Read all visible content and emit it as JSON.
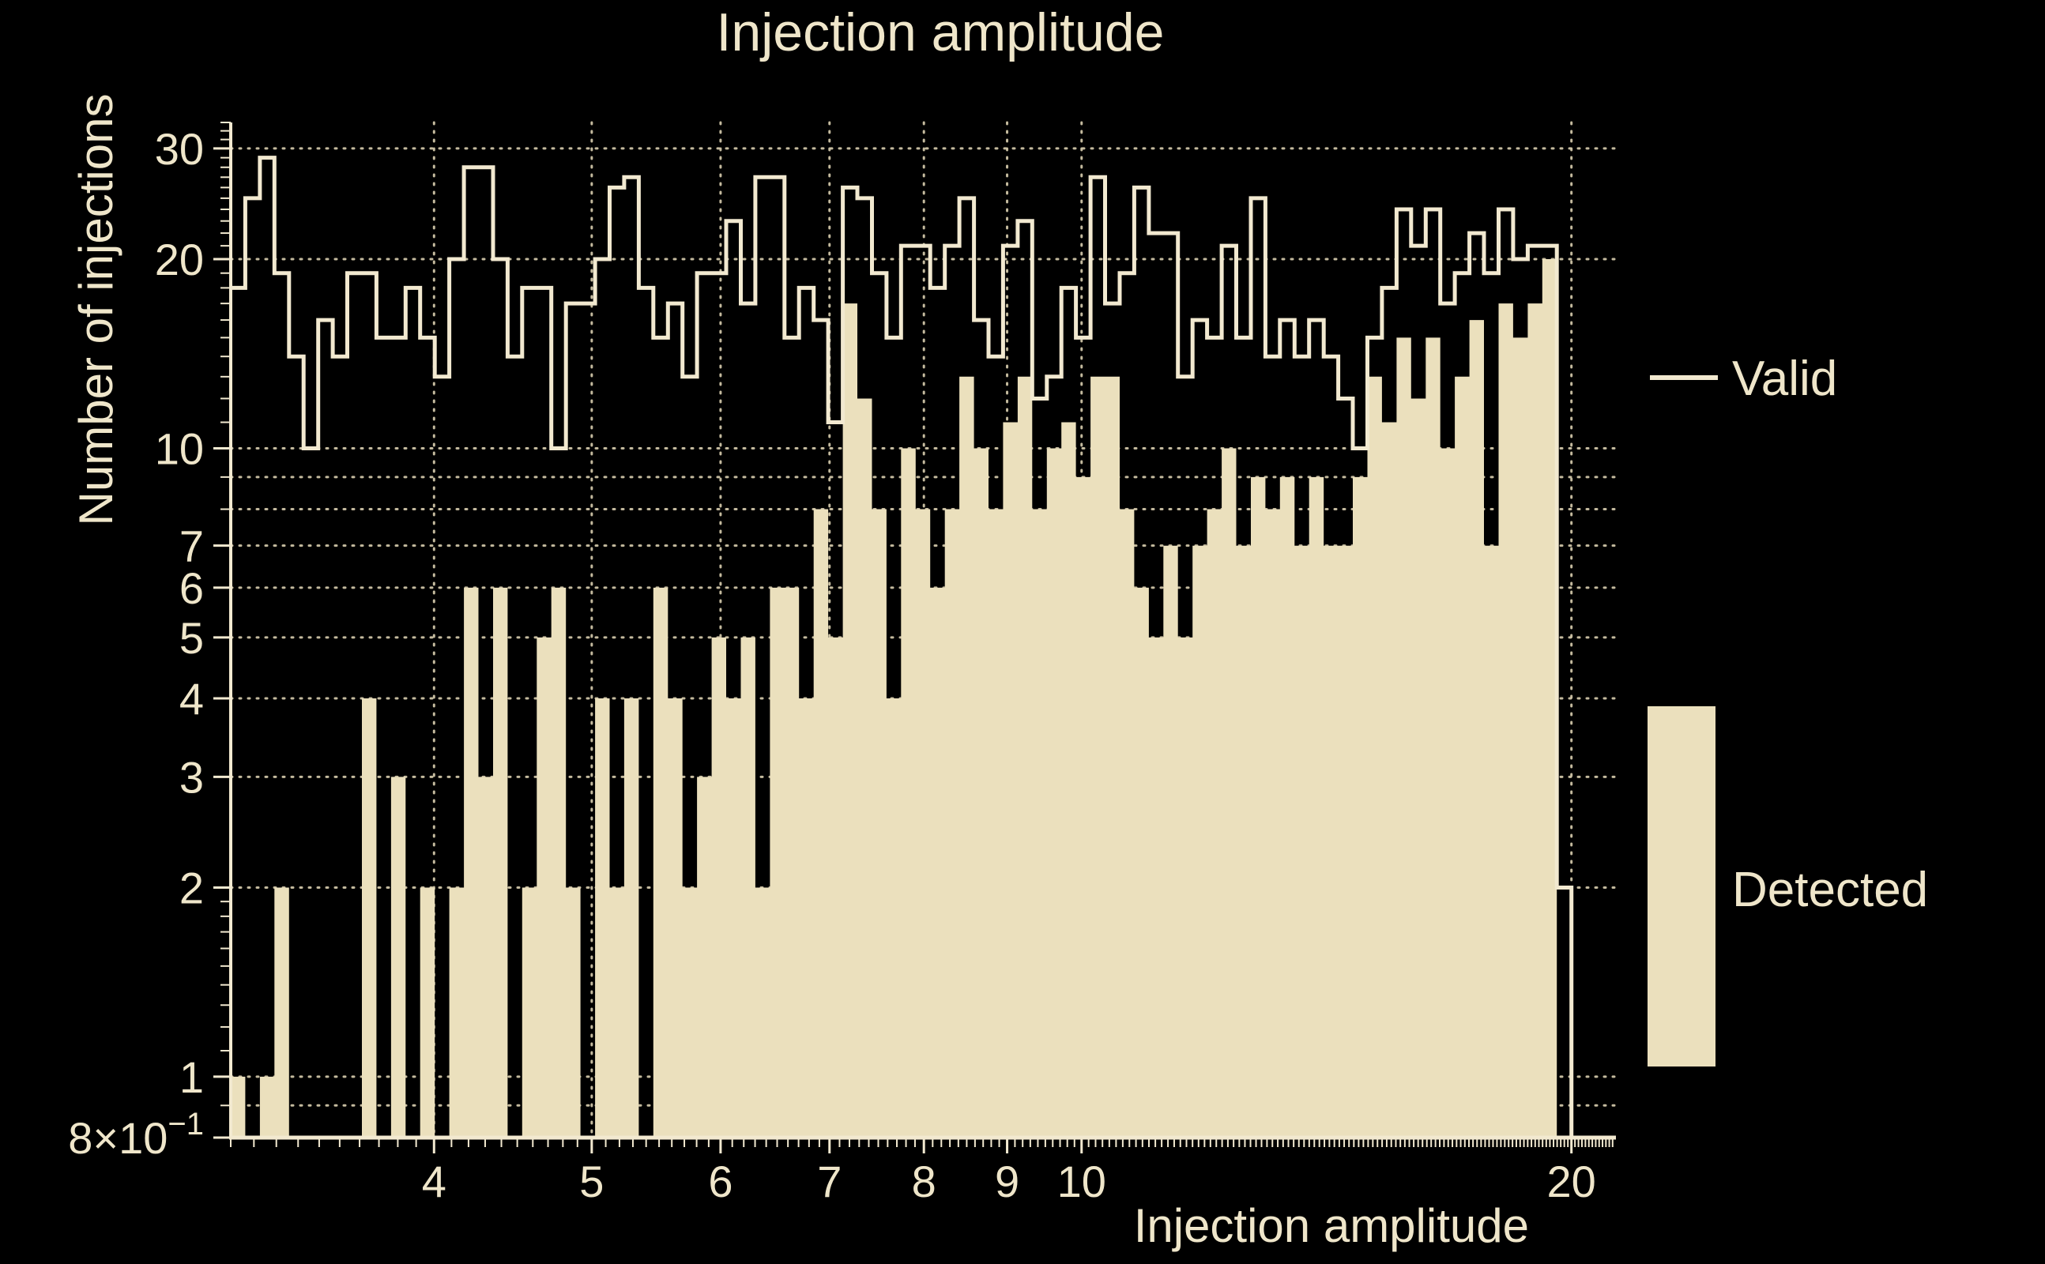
{
  "title": "Injection amplitude",
  "axes": {
    "x": {
      "label": "Injection amplitude",
      "scale": "log",
      "min": 3.0,
      "max": 21.3,
      "major_ticks": [
        4,
        5,
        6,
        7,
        8,
        9,
        10,
        20
      ],
      "tick_labels": [
        "4",
        "5",
        "6",
        "7",
        "8",
        "9",
        "10",
        "20"
      ],
      "grid": [
        4,
        5,
        6,
        7,
        8,
        9,
        10,
        20
      ]
    },
    "y": {
      "label": "Number of injections",
      "scale": "log",
      "min": 0.8,
      "max": 33,
      "major_ticks": [
        30,
        20,
        10,
        7,
        6,
        5,
        4,
        3,
        2,
        1,
        0.8
      ],
      "tick_labels": [
        "30",
        "20",
        "10",
        "7",
        "6",
        "5",
        "4",
        "3",
        "2",
        "1",
        "8×10"
      ],
      "exponent_label": {
        "base": "8×10",
        "exp": "−1",
        "value": 0.8
      },
      "grid": [
        30,
        20,
        10,
        9,
        8,
        7,
        6,
        5,
        4,
        3,
        2,
        1,
        0.9
      ]
    }
  },
  "legend": {
    "items": [
      {
        "label": "Valid",
        "swatch": "line"
      },
      {
        "label": "Detected",
        "swatch": "filled-box"
      }
    ]
  },
  "colors": {
    "background": "#000000",
    "fill": "#ebe0bd",
    "line": "#f2e9d0",
    "text": "#efe6ca",
    "grid": "#cfc5a7"
  },
  "chart_data": {
    "type": "bar",
    "subtype": "dual-histogram-loglog",
    "title": "Injection amplitude",
    "xlabel": "Injection amplitude",
    "ylabel": "Number of injections",
    "xlim": [
      3.0,
      21.3
    ],
    "ylim": [
      0.8,
      33
    ],
    "grid": "dotted",
    "legend_position": "right-outside",
    "bins": {
      "min": 3.0,
      "max": 20.0,
      "count": 92,
      "spacing": "log"
    },
    "series": [
      {
        "name": "Valid",
        "style": "step-outline",
        "values": [
          18,
          25,
          29,
          19,
          14,
          10,
          16,
          14,
          19,
          19,
          15,
          15,
          18,
          15,
          13,
          20,
          28,
          28,
          20,
          14,
          18,
          18,
          10,
          17,
          17,
          20,
          26,
          27,
          18,
          15,
          17,
          13,
          19,
          19,
          23,
          17,
          27,
          27,
          15,
          18,
          16,
          11,
          26,
          25,
          19,
          15,
          21,
          21,
          18,
          21,
          25,
          16,
          14,
          21,
          23,
          12,
          13,
          18,
          15,
          27,
          17,
          19,
          26,
          22,
          22,
          13,
          16,
          15,
          21,
          15,
          25,
          14,
          16,
          14,
          16,
          14,
          12,
          10,
          15,
          18,
          24,
          21,
          24,
          17,
          19,
          22,
          19,
          24,
          20,
          21,
          21,
          2
        ]
      },
      {
        "name": "Detected",
        "style": "filled",
        "values": [
          1,
          0,
          1,
          2,
          0,
          0,
          0,
          0,
          0,
          4,
          0,
          3,
          0,
          2,
          0,
          2,
          6,
          3,
          6,
          0,
          2,
          5,
          6,
          2,
          0,
          4,
          2,
          4,
          0,
          6,
          4,
          2,
          3,
          5,
          4,
          5,
          2,
          6,
          6,
          4,
          8,
          5,
          17,
          12,
          8,
          4,
          10,
          8,
          6,
          8,
          13,
          10,
          8,
          11,
          13,
          8,
          10,
          11,
          9,
          13,
          13,
          8,
          6,
          5,
          7,
          5,
          7,
          8,
          10,
          7,
          9,
          8,
          9,
          7,
          9,
          7,
          7,
          9,
          13,
          11,
          15,
          12,
          15,
          10,
          13,
          16,
          7,
          17,
          15,
          17,
          20,
          0
        ]
      }
    ]
  }
}
